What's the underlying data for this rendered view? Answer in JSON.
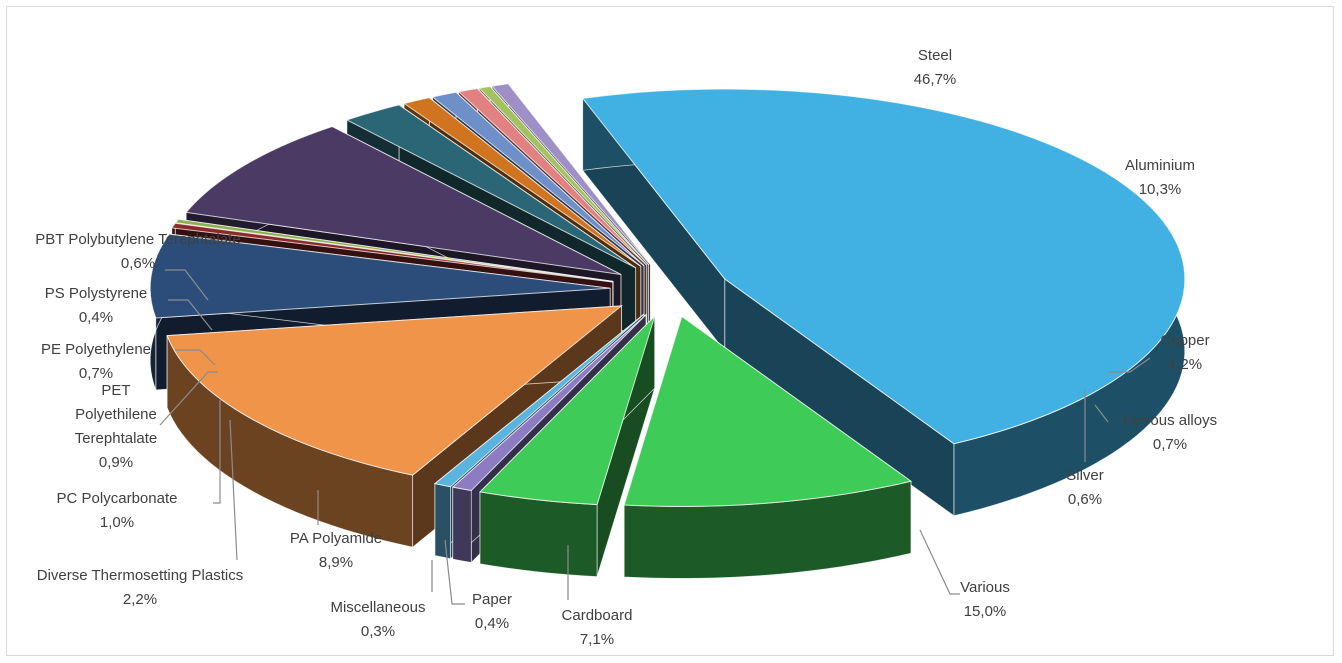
{
  "chart_data": {
    "type": "pie",
    "style": "3d-exploded",
    "legend": "none",
    "slices": [
      {
        "label": "Steel",
        "value_label": "46,7%",
        "value": 46.7,
        "color": "#41b0e2"
      },
      {
        "label": "Aluminium",
        "value_label": "10,3%",
        "value": 10.3,
        "color": "#3fcb58"
      },
      {
        "label": "Copper",
        "value_label": "4,2%",
        "value": 4.2,
        "color": "#3fcb58"
      },
      {
        "label": "Ferrous alloys",
        "value_label": "0,7%",
        "value": 0.7,
        "color": "#8e7cc3"
      },
      {
        "label": "Silver",
        "value_label": "0,6%",
        "value": 0.6,
        "color": "#5ab4dd"
      },
      {
        "label": "Various",
        "value_label": "15,0%",
        "value": 15.0,
        "color": "#f0944a"
      },
      {
        "label": "Cardboard",
        "value_label": "7,1%",
        "value": 7.1,
        "color": "#2c4d7a"
      },
      {
        "label": "Paper",
        "value_label": "0,4%",
        "value": 0.4,
        "color": "#8a2a2a"
      },
      {
        "label": "Miscellaneous",
        "value_label": "0,3%",
        "value": 0.3,
        "color": "#8bb04e"
      },
      {
        "label": "PA Polyamide",
        "value_label": "8,9%",
        "value": 8.9,
        "color": "#4b3a63"
      },
      {
        "label": "Diverse Thermosetting Plastics",
        "value_label": "2,2%",
        "value": 2.2,
        "color": "#2a6675"
      },
      {
        "label": "PC Polycarbonate",
        "value_label": "1,0%",
        "value": 1.0,
        "color": "#d0741f"
      },
      {
        "label": "PET Polyethilene Terephtalate",
        "value_label": "0,9%",
        "value": 0.9,
        "color": "#6f8fc9"
      },
      {
        "label": "PE Polyethylene",
        "value_label": "0,7%",
        "value": 0.7,
        "color": "#e2817f"
      },
      {
        "label": "PS Polystyrene",
        "value_label": "0,4%",
        "value": 0.4,
        "color": "#a4c25f"
      },
      {
        "label": "PBT Polybutylene Terephtalate",
        "value_label": "0,6%",
        "value": 0.6,
        "color": "#9f8fc7"
      }
    ]
  }
}
